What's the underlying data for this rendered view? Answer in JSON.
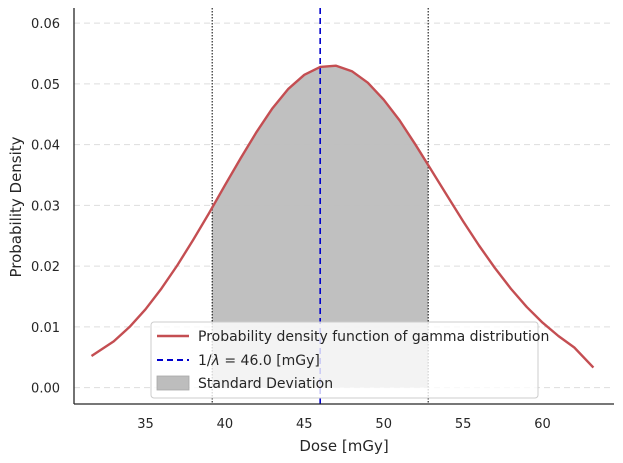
{
  "chart_data": {
    "type": "line",
    "title": "",
    "xlabel": "Dose [mGy]",
    "ylabel": "Probability Density",
    "xlim": [
      30.5,
      64.5
    ],
    "ylim": [
      -0.0027,
      0.0625
    ],
    "xticks": [
      35,
      40,
      45,
      50,
      55,
      60
    ],
    "yticks": [
      0.0,
      0.01,
      0.02,
      0.03,
      0.04,
      0.05,
      0.06
    ],
    "xtick_labels": [
      "35",
      "40",
      "45",
      "50",
      "55",
      "60"
    ],
    "ytick_labels": [
      "0.00",
      "0.01",
      "0.02",
      "0.03",
      "0.04",
      "0.05",
      "0.06"
    ],
    "grid": "horizontal dashed",
    "series": [
      {
        "name": "Probability density function of gamma distribution",
        "kind": "line",
        "color": "#c44e52",
        "x": [
          31.6,
          33,
          34,
          35,
          36,
          37,
          38,
          39,
          40,
          41,
          42,
          43,
          44,
          45,
          46,
          47,
          48,
          49,
          50,
          51,
          52,
          53,
          54,
          55,
          56,
          57,
          58,
          59,
          60,
          61,
          62,
          63.2
        ],
        "y": [
          0.0052,
          0.0076,
          0.01,
          0.0129,
          0.0163,
          0.0201,
          0.0243,
          0.0287,
          0.0333,
          0.0378,
          0.0421,
          0.046,
          0.0492,
          0.0515,
          0.0528,
          0.053,
          0.0521,
          0.0502,
          0.0474,
          0.044,
          0.04,
          0.0358,
          0.0316,
          0.0274,
          0.0234,
          0.0197,
          0.0163,
          0.0133,
          0.0107,
          0.0085,
          0.0066,
          0.0033
        ]
      }
    ],
    "mean_line": {
      "label_prefix": "1/",
      "label_symbol": "λ",
      "label_value": "= 46.0",
      "label_unit": "[mGy]",
      "x": 46.0,
      "color": "#0000cc",
      "style": "dashed"
    },
    "std_region": {
      "label": "Standard Deviation",
      "x_start": 39.2,
      "x_end": 52.8,
      "color": "#bdbdbd",
      "boundary_style": "dotted black"
    },
    "legend_position": "lower-center"
  }
}
